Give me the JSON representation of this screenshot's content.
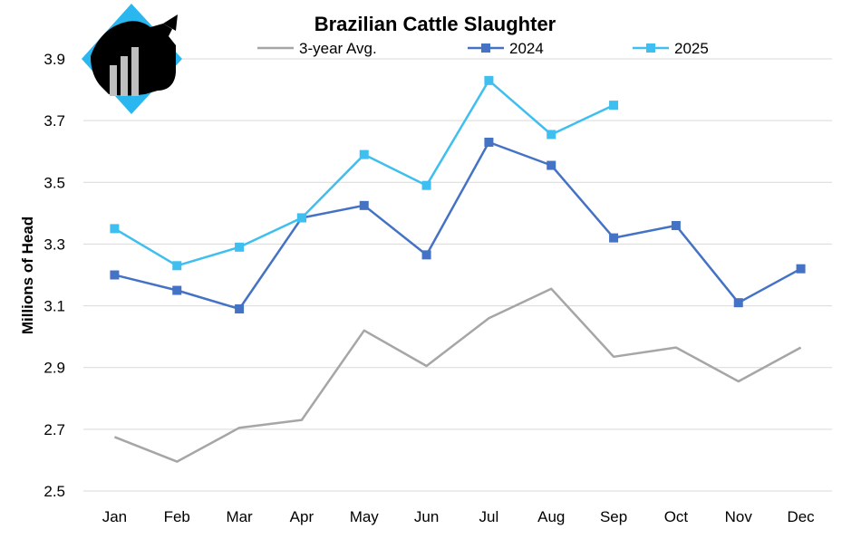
{
  "chart_data": {
    "type": "line",
    "title": "Brazilian Cattle Slaughter",
    "xlabel": "",
    "ylabel": "Millions of Head",
    "categories": [
      "Jan",
      "Feb",
      "Mar",
      "Apr",
      "May",
      "Jun",
      "Jul",
      "Aug",
      "Sep",
      "Oct",
      "Nov",
      "Dec"
    ],
    "y_ticks": [
      "2.5",
      "2.7",
      "2.9",
      "3.1",
      "3.3",
      "3.5",
      "3.7",
      "3.9"
    ],
    "ylim": [
      2.5,
      3.95
    ],
    "grid": true,
    "legend_position": "top",
    "series": [
      {
        "name": "3-year Avg.",
        "color": "#a6a6a6",
        "marker": "none",
        "values": [
          2.675,
          2.595,
          2.705,
          2.73,
          3.02,
          2.905,
          3.06,
          3.155,
          2.935,
          2.965,
          2.855,
          2.965
        ]
      },
      {
        "name": "2024",
        "color": "#4472c4",
        "marker": "square",
        "values": [
          3.2,
          3.15,
          3.09,
          3.385,
          3.425,
          3.265,
          3.63,
          3.555,
          3.32,
          3.36,
          3.11,
          3.22
        ]
      },
      {
        "name": "2025",
        "color": "#3fbfef",
        "marker": "square",
        "values": [
          3.35,
          3.23,
          3.29,
          3.385,
          3.59,
          3.49,
          3.83,
          3.655,
          3.75,
          null,
          null,
          null
        ]
      }
    ]
  },
  "logo": {
    "icon": "cow-bar-chart-logo",
    "color": "#2ab6ee"
  }
}
